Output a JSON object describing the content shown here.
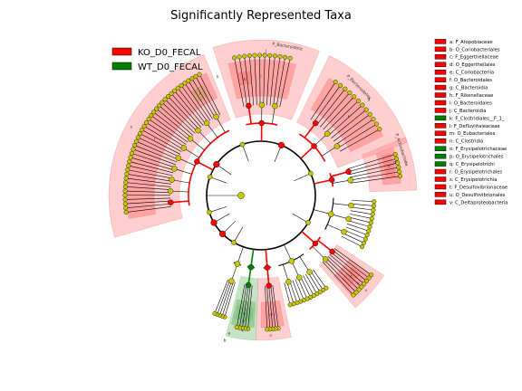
{
  "title": "Significantly Represented Taxa",
  "colors": {
    "ko": "#ff0000",
    "wt": "#008000",
    "node": "#c8c800",
    "ko_shade": "#ff8080",
    "wt_shade": "#80c080"
  },
  "groups": [
    {
      "label": "KO_D0_FECAL",
      "color": "#ff0000"
    },
    {
      "label": "WT_D0_FECAL",
      "color": "#008000"
    }
  ],
  "taxa_key": [
    {
      "letter": "a",
      "text": "a: F_Atopobiaceae",
      "group": "ko"
    },
    {
      "letter": "b",
      "text": "b: O_Coriobacteriales",
      "group": "ko"
    },
    {
      "letter": "c",
      "text": "c: F_Eggerthellaceae",
      "group": "ko"
    },
    {
      "letter": "d",
      "text": "d: O_Eggerthellales",
      "group": "ko"
    },
    {
      "letter": "e",
      "text": "e: C_Coriobacteriia",
      "group": "ko"
    },
    {
      "letter": "f",
      "text": "f: O_Bacteroidales",
      "group": "ko"
    },
    {
      "letter": "g",
      "text": "g: C_Bacteroidia",
      "group": "ko"
    },
    {
      "letter": "h",
      "text": "h: F_Rikenellaceae",
      "group": "ko"
    },
    {
      "letter": "i",
      "text": "i: O_Bacteroidales",
      "group": "ko"
    },
    {
      "letter": "j",
      "text": "j: C_Bacteroidia",
      "group": "ko"
    },
    {
      "letter": "k",
      "text": "k: F_Clostridiales__F_1_",
      "group": "wt"
    },
    {
      "letter": "l",
      "text": "l: F_Defluviitaleaceae",
      "group": "ko"
    },
    {
      "letter": "m",
      "text": "m: O_Eubacteriales",
      "group": "ko"
    },
    {
      "letter": "n",
      "text": "n: C_Clostridia",
      "group": "ko"
    },
    {
      "letter": "o",
      "text": "o: F_Erysipelotrichaceae",
      "group": "wt"
    },
    {
      "letter": "p",
      "text": "p: O_Erysipelotrichales",
      "group": "wt"
    },
    {
      "letter": "q",
      "text": "q: C_Erysipelotrichi",
      "group": "wt"
    },
    {
      "letter": "r",
      "text": "r: O_Erysipelotrichales",
      "group": "ko"
    },
    {
      "letter": "s",
      "text": "s: C_Erysipelotrichia",
      "group": "ko"
    },
    {
      "letter": "t",
      "text": "t: F_Desulfovibrionaceae",
      "group": "ko"
    },
    {
      "letter": "u",
      "text": "u: O_Desulfovibrionales",
      "group": "ko"
    },
    {
      "letter": "v",
      "text": "v: C_Deltaproteobacteria",
      "group": "ko"
    }
  ],
  "sector_labels": {
    "bacteroidota": "P_Bacteroidota",
    "bacteroidetes": "P_Bacteroidetes",
    "actinobacteria": "P_Actinobacteria",
    "letters": [
      "a",
      "b",
      "c",
      "d",
      "e",
      "f",
      "g",
      "h",
      "i",
      "j",
      "k",
      "l",
      "m",
      "n",
      "o",
      "p",
      "q",
      "r",
      "s",
      "t",
      "u",
      "v"
    ]
  }
}
